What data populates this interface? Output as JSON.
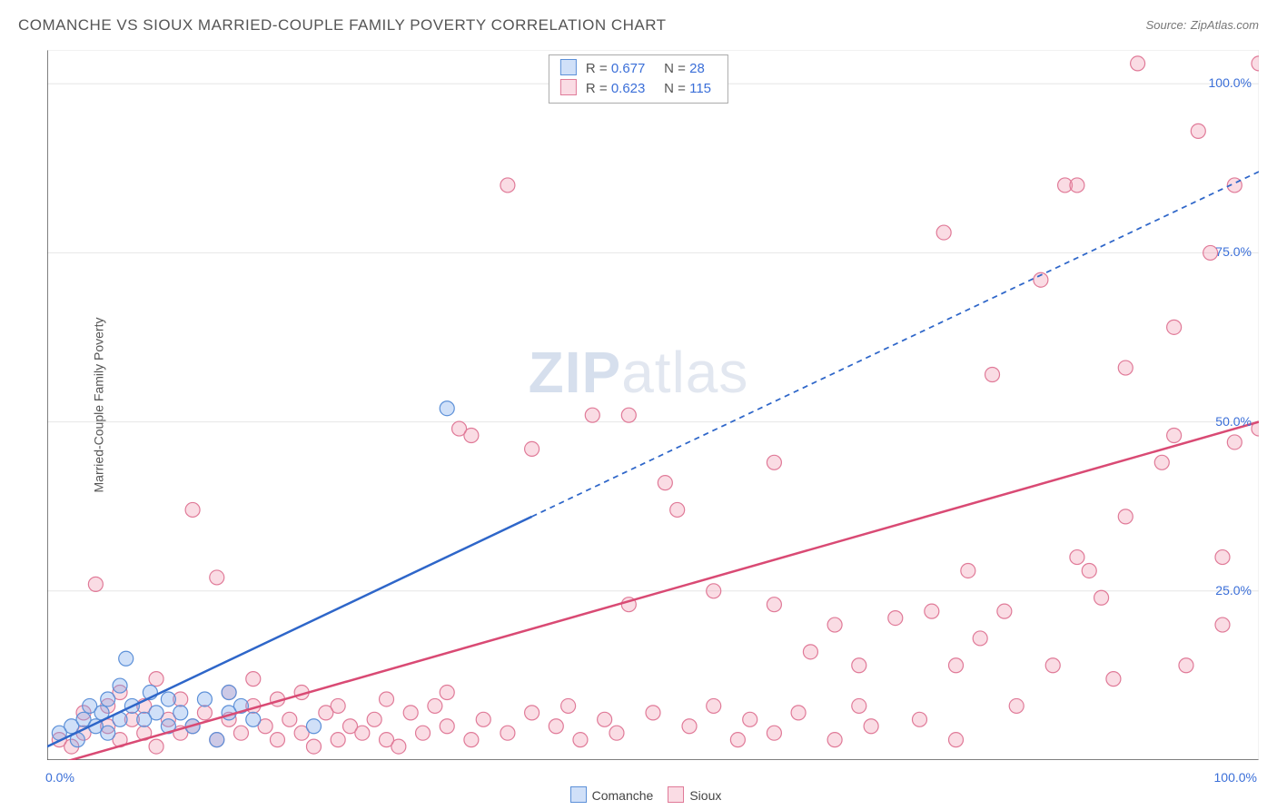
{
  "title": "COMANCHE VS SIOUX MARRIED-COUPLE FAMILY POVERTY CORRELATION CHART",
  "source_label": "Source:",
  "source_name": "ZipAtlas.com",
  "ylabel": "Married-Couple Family Poverty",
  "watermark_a": "ZIP",
  "watermark_b": "atlas",
  "chart": {
    "type": "scatter+regression",
    "xlim": [
      0,
      100
    ],
    "ylim": [
      0,
      105
    ],
    "yticks": [
      {
        "v": 25,
        "label": "25.0%"
      },
      {
        "v": 50,
        "label": "50.0%"
      },
      {
        "v": 75,
        "label": "75.0%"
      },
      {
        "v": 100,
        "label": "100.0%"
      }
    ],
    "x_origin_label": "0.0%",
    "x_max_label": "100.0%",
    "xticks_minor": [
      10,
      20,
      30,
      40,
      50,
      60,
      70,
      80,
      90
    ],
    "yticks_minor": [],
    "background_color": "#ffffff",
    "grid_color": "#e6e6e6",
    "border_color": "#555555",
    "marker_radius": 8,
    "marker_stroke_width": 1.2,
    "line_width": 2.5,
    "dash_pattern": "6,5",
    "series": [
      {
        "name": "Comanche",
        "fill": "rgba(120,165,235,0.35)",
        "stroke": "#5c90d8",
        "line_color": "#2e66c9",
        "R": "0.677",
        "N": "28",
        "points": [
          [
            1,
            4
          ],
          [
            2,
            5
          ],
          [
            2.5,
            3
          ],
          [
            3,
            6
          ],
          [
            3.5,
            8
          ],
          [
            4,
            5
          ],
          [
            4.5,
            7
          ],
          [
            5,
            4
          ],
          [
            5,
            9
          ],
          [
            6,
            6
          ],
          [
            6,
            11
          ],
          [
            6.5,
            15
          ],
          [
            7,
            8
          ],
          [
            8,
            6
          ],
          [
            8.5,
            10
          ],
          [
            9,
            7
          ],
          [
            10,
            5
          ],
          [
            10,
            9
          ],
          [
            11,
            7
          ],
          [
            12,
            5
          ],
          [
            13,
            9
          ],
          [
            14,
            3
          ],
          [
            15,
            7
          ],
          [
            15,
            10
          ],
          [
            16,
            8
          ],
          [
            17,
            6
          ],
          [
            22,
            5
          ],
          [
            33,
            52
          ]
        ],
        "regression": {
          "x1": 0,
          "y1": 2,
          "x2_solid": 40,
          "y2_solid": 36,
          "x2": 100,
          "y2": 87
        }
      },
      {
        "name": "Sioux",
        "fill": "rgba(240,140,165,0.30)",
        "stroke": "#e07a98",
        "line_color": "#d94a74",
        "R": "0.623",
        "N": "115",
        "points": [
          [
            1,
            3
          ],
          [
            2,
            2
          ],
          [
            3,
            4
          ],
          [
            3,
            7
          ],
          [
            4,
            26
          ],
          [
            5,
            5
          ],
          [
            5,
            8
          ],
          [
            6,
            3
          ],
          [
            6,
            10
          ],
          [
            7,
            6
          ],
          [
            8,
            4
          ],
          [
            8,
            8
          ],
          [
            9,
            2
          ],
          [
            9,
            12
          ],
          [
            10,
            6
          ],
          [
            11,
            4
          ],
          [
            11,
            9
          ],
          [
            12,
            37
          ],
          [
            12,
            5
          ],
          [
            13,
            7
          ],
          [
            14,
            3
          ],
          [
            14,
            27
          ],
          [
            15,
            6
          ],
          [
            15,
            10
          ],
          [
            16,
            4
          ],
          [
            17,
            8
          ],
          [
            17,
            12
          ],
          [
            18,
            5
          ],
          [
            19,
            3
          ],
          [
            19,
            9
          ],
          [
            20,
            6
          ],
          [
            21,
            4
          ],
          [
            21,
            10
          ],
          [
            22,
            2
          ],
          [
            23,
            7
          ],
          [
            24,
            3
          ],
          [
            24,
            8
          ],
          [
            25,
            5
          ],
          [
            26,
            4
          ],
          [
            27,
            6
          ],
          [
            28,
            3
          ],
          [
            28,
            9
          ],
          [
            29,
            2
          ],
          [
            30,
            7
          ],
          [
            31,
            4
          ],
          [
            32,
            8
          ],
          [
            33,
            5
          ],
          [
            33,
            10
          ],
          [
            34,
            49
          ],
          [
            35,
            48
          ],
          [
            35,
            3
          ],
          [
            36,
            6
          ],
          [
            38,
            4
          ],
          [
            38,
            85
          ],
          [
            40,
            7
          ],
          [
            40,
            46
          ],
          [
            42,
            5
          ],
          [
            43,
            8
          ],
          [
            44,
            3
          ],
          [
            45,
            51
          ],
          [
            46,
            6
          ],
          [
            47,
            4
          ],
          [
            48,
            23
          ],
          [
            48,
            51
          ],
          [
            50,
            7
          ],
          [
            51,
            41
          ],
          [
            52,
            37
          ],
          [
            53,
            5
          ],
          [
            55,
            8
          ],
          [
            55,
            25
          ],
          [
            57,
            3
          ],
          [
            58,
            6
          ],
          [
            60,
            4
          ],
          [
            60,
            23
          ],
          [
            60,
            44
          ],
          [
            62,
            7
          ],
          [
            63,
            16
          ],
          [
            65,
            3
          ],
          [
            65,
            20
          ],
          [
            67,
            8
          ],
          [
            67,
            14
          ],
          [
            68,
            5
          ],
          [
            70,
            21
          ],
          [
            72,
            6
          ],
          [
            73,
            22
          ],
          [
            74,
            78
          ],
          [
            75,
            3
          ],
          [
            75,
            14
          ],
          [
            76,
            28
          ],
          [
            77,
            18
          ],
          [
            78,
            57
          ],
          [
            79,
            22
          ],
          [
            80,
            8
          ],
          [
            82,
            71
          ],
          [
            83,
            14
          ],
          [
            84,
            85
          ],
          [
            85,
            85
          ],
          [
            85,
            30
          ],
          [
            86,
            28
          ],
          [
            87,
            24
          ],
          [
            88,
            12
          ],
          [
            89,
            36
          ],
          [
            89,
            58
          ],
          [
            90,
            103
          ],
          [
            92,
            44
          ],
          [
            93,
            48
          ],
          [
            93,
            64
          ],
          [
            94,
            14
          ],
          [
            95,
            93
          ],
          [
            96,
            75
          ],
          [
            97,
            20
          ],
          [
            97,
            30
          ],
          [
            98,
            47
          ],
          [
            98,
            85
          ],
          [
            100,
            49
          ],
          [
            100,
            103
          ]
        ],
        "regression": {
          "x1": 0,
          "y1": -1,
          "x2_solid": 100,
          "y2_solid": 50,
          "x2": 100,
          "y2": 50
        }
      }
    ]
  },
  "bottom_legend": [
    {
      "label": "Comanche",
      "fill": "rgba(120,165,235,0.35)",
      "stroke": "#5c90d8"
    },
    {
      "label": "Sioux",
      "fill": "rgba(240,140,165,0.30)",
      "stroke": "#e07a98"
    }
  ]
}
